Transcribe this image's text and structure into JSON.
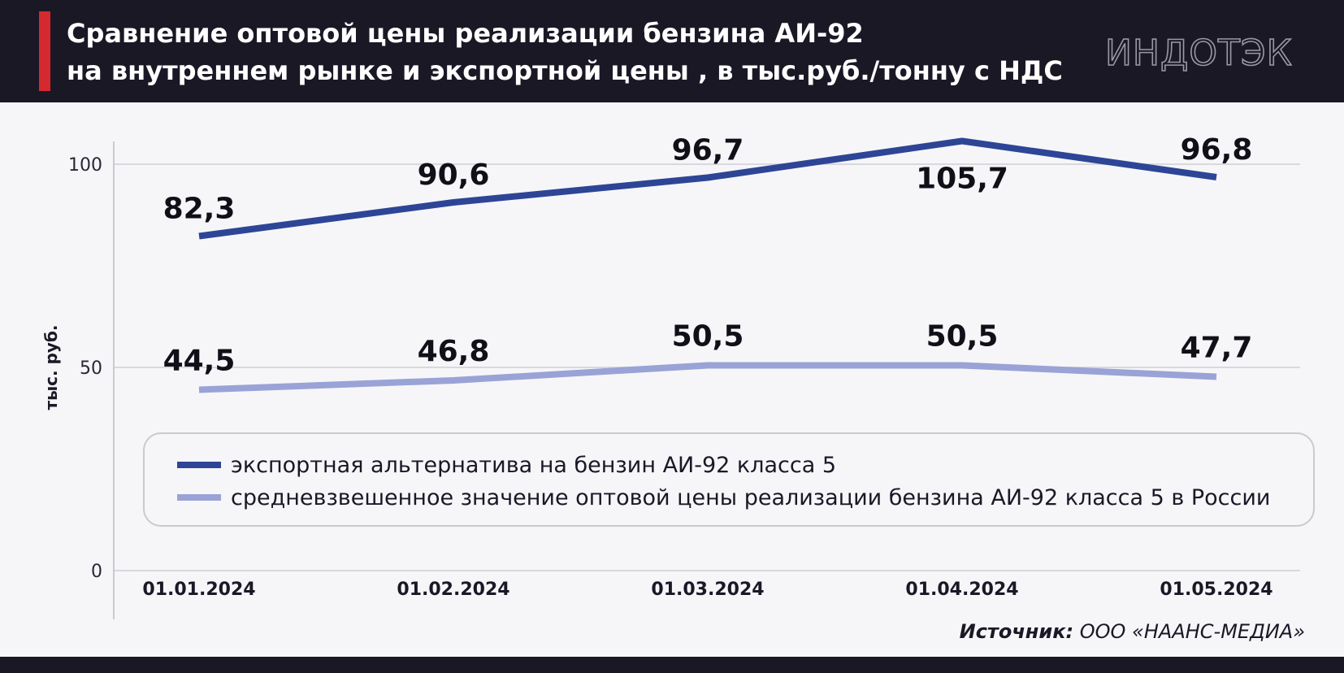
{
  "header": {
    "title_line1": "Сравнение оптовой цены реализации бензина АИ-92",
    "title_line2": "на внутреннем рынке и экспортной цены , в тыс.руб./тонну с НДС",
    "logo_text": "ИНДОТЭК"
  },
  "source": {
    "label": "Источник:",
    "value": "ООО «НААНС-МЕДИА»"
  },
  "colors": {
    "header_bg": "#1b1826",
    "accent": "#d42a2f",
    "series_export": "#2e4596",
    "series_domestic": "#9aa3d6"
  },
  "chart_data": {
    "type": "line",
    "title": "Сравнение оптовой цены реализации бензина АИ-92 на внутреннем рынке и экспортной цены , в тыс.руб./тонну с НДС",
    "xlabel": "",
    "ylabel": "тыс. руб.",
    "ylim": [
      0,
      115
    ],
    "yticks": [
      0,
      50,
      100
    ],
    "grid": true,
    "legend_position": "bottom-center",
    "categories": [
      "01.01.2024",
      "01.02.2024",
      "01.03.2024",
      "01.04.2024",
      "01.05.2024"
    ],
    "series": [
      {
        "name": "экспортная альтернатива на бензин АИ-92 класса 5",
        "values": [
          82.3,
          90.6,
          96.7,
          105.7,
          96.8
        ],
        "labels": [
          "82,3",
          "90,6",
          "96,7",
          "105,7",
          "96,8"
        ],
        "color": "#2e4596"
      },
      {
        "name": "средневзвешенное значение оптовой цены реализации бензина АИ-92 класса 5 в России",
        "values": [
          44.5,
          46.8,
          50.5,
          50.5,
          47.7
        ],
        "labels": [
          "44,5",
          "46,8",
          "50,5",
          "50,5",
          "47,7"
        ],
        "color": "#9aa3d6"
      }
    ]
  }
}
